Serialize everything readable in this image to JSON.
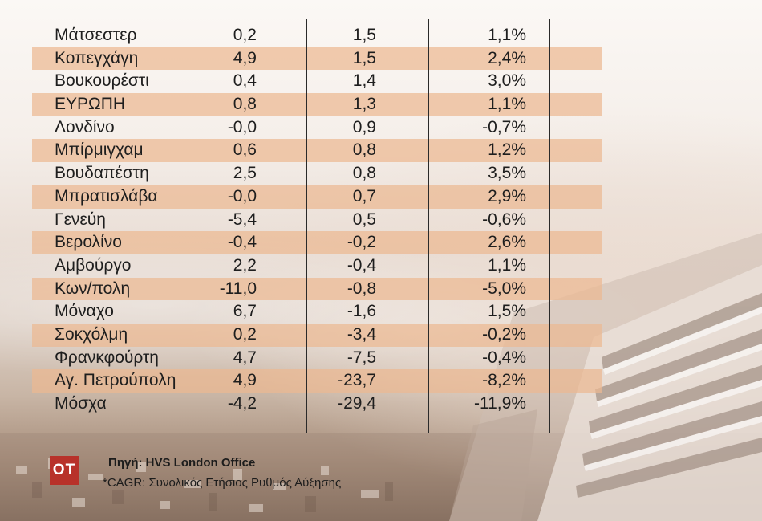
{
  "chart_data": {
    "type": "table",
    "rows": [
      {
        "city": "Μάτσεστερ",
        "v1": "0,2",
        "v2": "1,5",
        "v3": "1,1%"
      },
      {
        "city": "Κοπεγχάγη",
        "v1": "4,9",
        "v2": "1,5",
        "v3": "2,4%"
      },
      {
        "city": "Βουκουρέστι",
        "v1": "0,4",
        "v2": "1,4",
        "v3": "3,0%"
      },
      {
        "city": "ΕΥΡΩΠΗ",
        "v1": "0,8",
        "v2": "1,3",
        "v3": "1,1%"
      },
      {
        "city": "Λονδίνο",
        "v1": "-0,0",
        "v2": "0,9",
        "v3": "-0,7%"
      },
      {
        "city": "Μπίρμιγχαμ",
        "v1": "0,6",
        "v2": "0,8",
        "v3": "1,2%"
      },
      {
        "city": "Βουδαπέστη",
        "v1": "2,5",
        "v2": "0,8",
        "v3": "3,5%"
      },
      {
        "city": "Μπρατισλάβα",
        "v1": "-0,0",
        "v2": "0,7",
        "v3": "2,9%"
      },
      {
        "city": "Γενεύη",
        "v1": "-5,4",
        "v2": "0,5",
        "v3": "-0,6%"
      },
      {
        "city": "Βερολίνο",
        "v1": "-0,4",
        "v2": "-0,2",
        "v3": "2,6%"
      },
      {
        "city": "Αμβούργο",
        "v1": "2,2",
        "v2": "-0,4",
        "v3": "1,1%"
      },
      {
        "city": "Κων/πολη",
        "v1": "-11,0",
        "v2": "-0,8",
        "v3": "-5,0%"
      },
      {
        "city": "Μόναχο",
        "v1": "6,7",
        "v2": "-1,6",
        "v3": "1,5%"
      },
      {
        "city": "Σοκχόλμη",
        "v1": "0,2",
        "v2": "-3,4",
        "v3": "-0,2%"
      },
      {
        "city": "Φρανκφούρτη",
        "v1": "4,7",
        "v2": "-7,5",
        "v3": "-0,4%"
      },
      {
        "city": "Αγ. Πετρούπολη",
        "v1": "4,9",
        "v2": "-23,7",
        "v3": "-8,2%"
      },
      {
        "city": "Μόσχα",
        "v1": "-4,2",
        "v2": "-29,4",
        "v3": "-11,9%"
      }
    ]
  },
  "footer": {
    "logo": "OT",
    "source": "Πηγή: HVS London Office",
    "note": "*CAGR: Συνολικός Ετήσιος Ρυθμός Αύξησης"
  },
  "colors": {
    "row_shade": "#ecb892",
    "logo_bg": "#b8322a"
  }
}
